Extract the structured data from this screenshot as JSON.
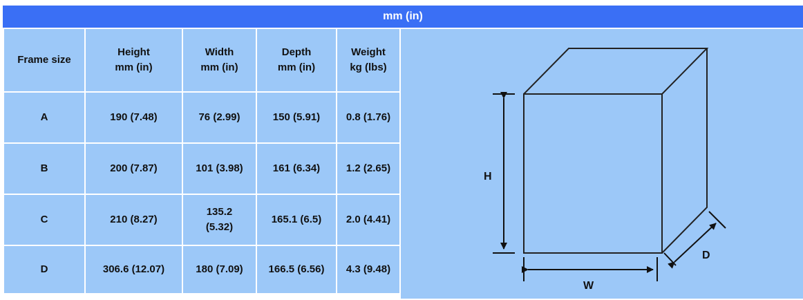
{
  "unit_title": "mm (in)",
  "headers": {
    "frame_size": "Frame size",
    "height_line1": "Height",
    "height_line2": "mm (in)",
    "width_line1": "Width",
    "width_line2": "mm (in)",
    "depth_line1": "Depth",
    "depth_line2": "mm (in)",
    "weight_line1": "Weight",
    "weight_line2": "kg (lbs)"
  },
  "rows": [
    {
      "frame": "A",
      "height": "190 (7.48)",
      "width_line1": "76 (2.99)",
      "width_line2": "",
      "depth": "150 (5.91)",
      "weight": "0.8 (1.76)"
    },
    {
      "frame": "B",
      "height": "200 (7.87)",
      "width_line1": "101 (3.98)",
      "width_line2": "",
      "depth": "161 (6.34)",
      "weight": "1.2 (2.65)"
    },
    {
      "frame": "C",
      "height": "210 (8.27)",
      "width_line1": "135.2",
      "width_line2": "(5.32)",
      "depth": "165.1 (6.5)",
      "weight": "2.0 (4.41)"
    },
    {
      "frame": "D",
      "height": "306.6 (12.07)",
      "width_line1": "180 (7.09)",
      "width_line2": "",
      "depth": "166.5 (6.56)",
      "weight": "4.3 (9.48)"
    }
  ],
  "diagram": {
    "height_label": "H",
    "width_label": "W",
    "depth_label": "D"
  },
  "colors": {
    "title_bar": "#3a6ff5",
    "cell_background": "#9cc8f8",
    "grid_lines": "#ffffff",
    "text": "#111111"
  }
}
